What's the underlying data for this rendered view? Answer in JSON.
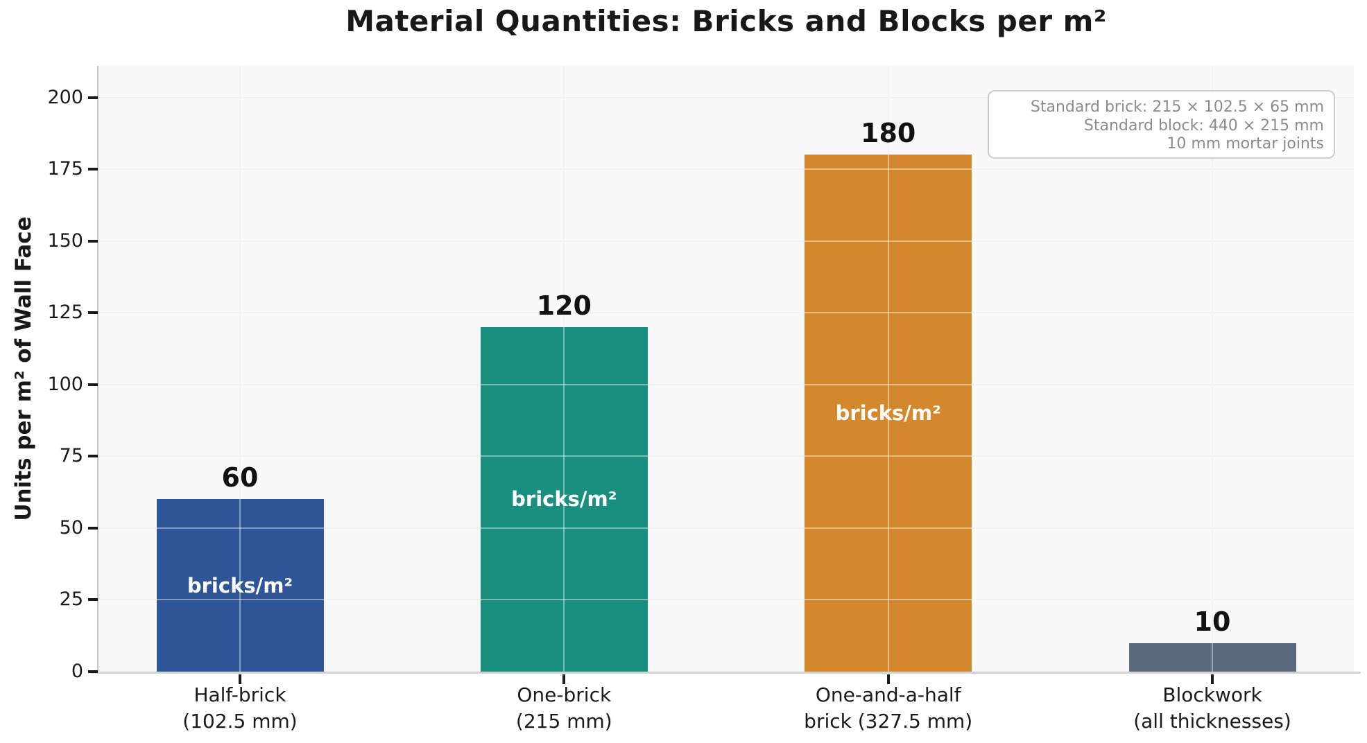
{
  "title": "Material Quantities: Bricks and Blocks per m²",
  "chart_data": {
    "type": "bar",
    "title": "Material Quantities: Bricks and Blocks per m²",
    "xlabel": "",
    "ylabel": "Units per m² of Wall Face",
    "ylim": [
      0,
      211
    ],
    "yticks": [
      0,
      25,
      50,
      75,
      100,
      125,
      150,
      175,
      200
    ],
    "grid": true,
    "legend": "none",
    "bars": [
      {
        "category_line1": "Half-brick",
        "category_line2": "(102.5 mm)",
        "value": 60,
        "inner_label": "bricks/m²",
        "color": "#2e5596"
      },
      {
        "category_line1": "One-brick",
        "category_line2": "(215 mm)",
        "value": 120,
        "inner_label": "bricks/m²",
        "color": "#1a8f80"
      },
      {
        "category_line1": "One-and-a-half",
        "category_line2": "brick (327.5 mm)",
        "value": 180,
        "inner_label": "bricks/m²",
        "color": "#d4882e"
      },
      {
        "category_line1": "Blockwork",
        "category_line2": "(all thicknesses)",
        "value": 10,
        "inner_label": "",
        "color": "#5a6a7c"
      }
    ],
    "annotation": {
      "lines": [
        "Standard brick: 215 × 102.5 × 65 mm",
        "Standard block: 440 × 215 mm",
        "10 mm mortar joints"
      ]
    }
  }
}
